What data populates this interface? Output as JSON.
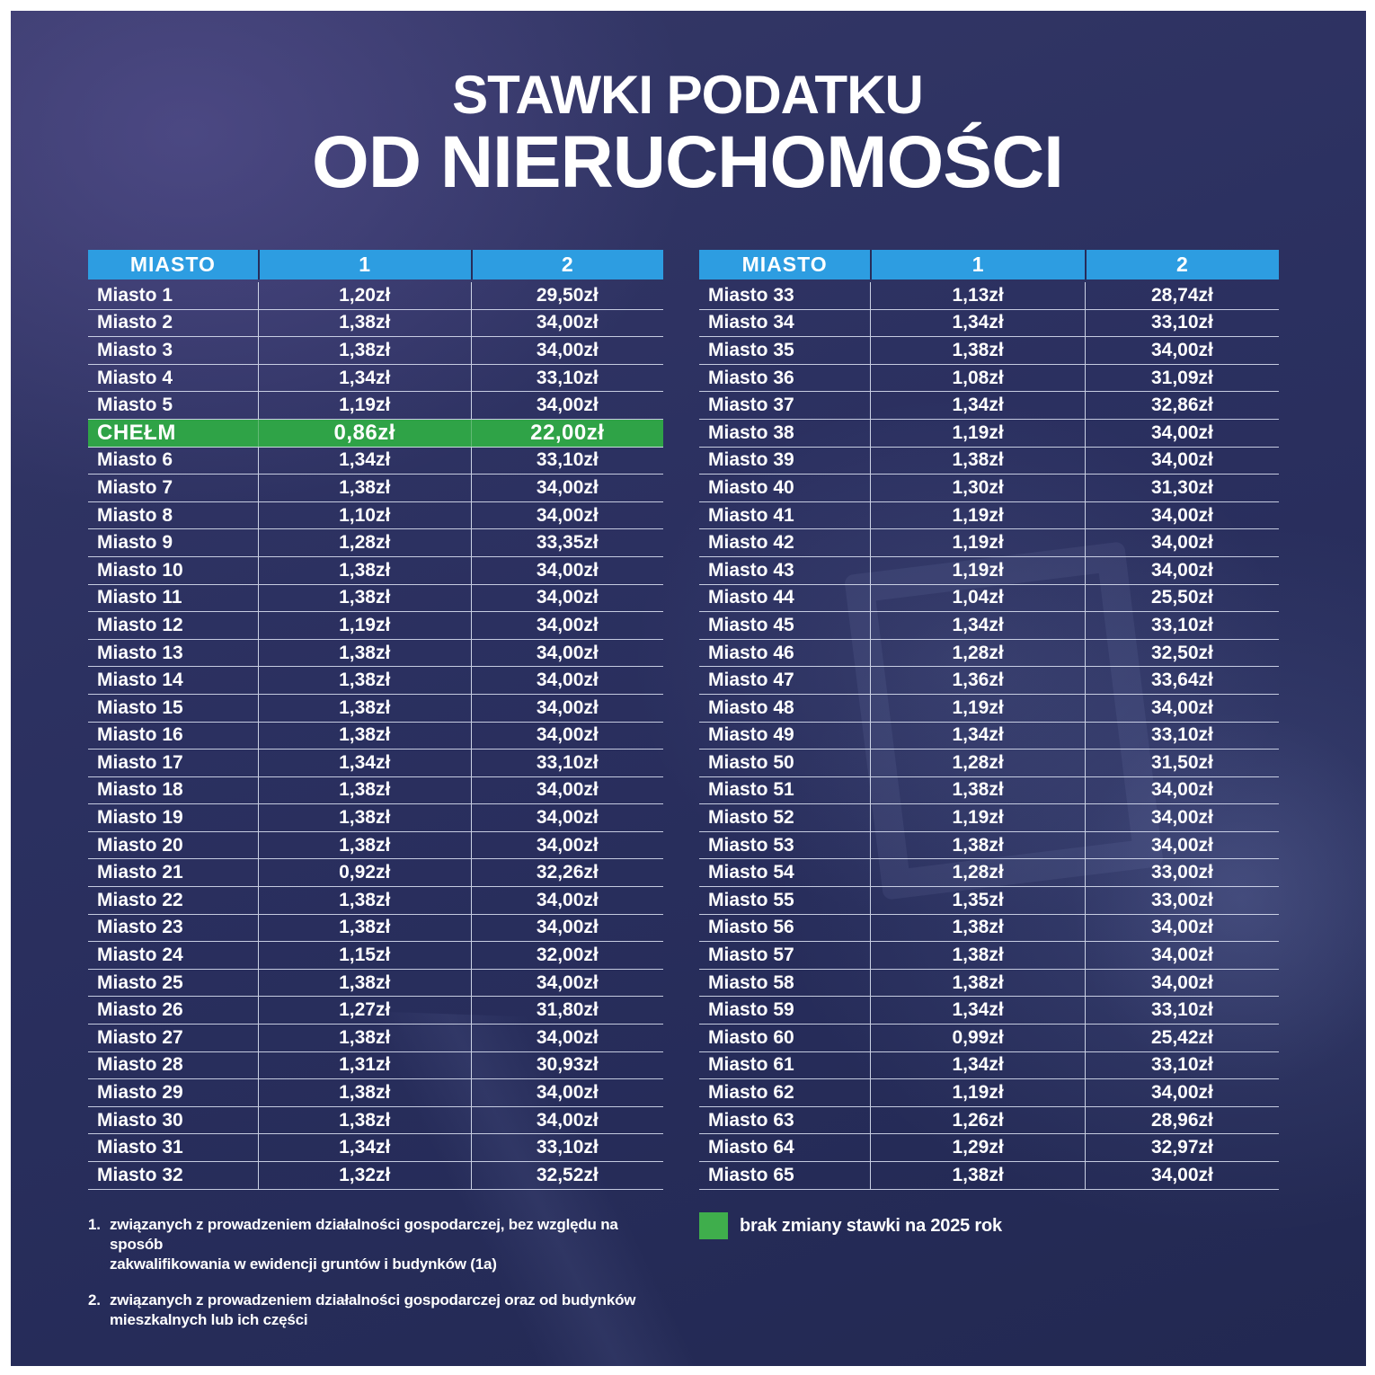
{
  "title": {
    "line1": "STAWKI PODATKU",
    "line2": "OD NIERUCHOMOŚCI"
  },
  "colors": {
    "panel_navy": "#2b3060",
    "frame_white": "#ffffff",
    "header_blue": "#2d9de1",
    "highlight_green": "#2fa347",
    "legend_green": "#3fae4c",
    "text_white": "#ffffff"
  },
  "chart_data": {
    "type": "table",
    "title": "STAWKI PODATKU OD NIERUCHOMOŚCI",
    "columns": [
      "MIASTO",
      "1",
      "2"
    ],
    "highlighted_row": "CHEŁM",
    "highlight_meaning": "brak zmiany stawki na 2025 rok",
    "tables": [
      {
        "position": "left",
        "rows": [
          [
            "Miasto 1",
            "1,20zł",
            "29,50zł"
          ],
          [
            "Miasto 2",
            "1,38zł",
            "34,00zł"
          ],
          [
            "Miasto 3",
            "1,38zł",
            "34,00zł"
          ],
          [
            "Miasto 4",
            "1,34zł",
            "33,10zł"
          ],
          [
            "Miasto 5",
            "1,19zł",
            "34,00zł"
          ],
          [
            "CHEŁM",
            "0,86zł",
            "22,00zł"
          ],
          [
            "Miasto 6",
            "1,34zł",
            "33,10zł"
          ],
          [
            "Miasto 7",
            "1,38zł",
            "34,00zł"
          ],
          [
            "Miasto 8",
            "1,10zł",
            "34,00zł"
          ],
          [
            "Miasto 9",
            "1,28zł",
            "33,35zł"
          ],
          [
            "Miasto 10",
            "1,38zł",
            "34,00zł"
          ],
          [
            "Miasto 11",
            "1,38zł",
            "34,00zł"
          ],
          [
            "Miasto 12",
            "1,19zł",
            "34,00zł"
          ],
          [
            "Miasto 13",
            "1,38zł",
            "34,00zł"
          ],
          [
            "Miasto 14",
            "1,38zł",
            "34,00zł"
          ],
          [
            "Miasto 15",
            "1,38zł",
            "34,00zł"
          ],
          [
            "Miasto 16",
            "1,38zł",
            "34,00zł"
          ],
          [
            "Miasto 17",
            "1,34zł",
            "33,10zł"
          ],
          [
            "Miasto 18",
            "1,38zł",
            "34,00zł"
          ],
          [
            "Miasto 19",
            "1,38zł",
            "34,00zł"
          ],
          [
            "Miasto 20",
            "1,38zł",
            "34,00zł"
          ],
          [
            "Miasto 21",
            "0,92zł",
            "32,26zł"
          ],
          [
            "Miasto 22",
            "1,38zł",
            "34,00zł"
          ],
          [
            "Miasto 23",
            "1,38zł",
            "34,00zł"
          ],
          [
            "Miasto 24",
            "1,15zł",
            "32,00zł"
          ],
          [
            "Miasto 25",
            "1,38zł",
            "34,00zł"
          ],
          [
            "Miasto 26",
            "1,27zł",
            "31,80zł"
          ],
          [
            "Miasto 27",
            "1,38zł",
            "34,00zł"
          ],
          [
            "Miasto 28",
            "1,31zł",
            "30,93zł"
          ],
          [
            "Miasto 29",
            "1,38zł",
            "34,00zł"
          ],
          [
            "Miasto 30",
            "1,38zł",
            "34,00zł"
          ],
          [
            "Miasto 31",
            "1,34zł",
            "33,10zł"
          ],
          [
            "Miasto 32",
            "1,32zł",
            "32,52zł"
          ]
        ]
      },
      {
        "position": "right",
        "rows": [
          [
            "Miasto 33",
            "1,13zł",
            "28,74zł"
          ],
          [
            "Miasto 34",
            "1,34zł",
            "33,10zł"
          ],
          [
            "Miasto 35",
            "1,38zł",
            "34,00zł"
          ],
          [
            "Miasto 36",
            "1,08zł",
            "31,09zł"
          ],
          [
            "Miasto 37",
            "1,34zł",
            "32,86zł"
          ],
          [
            "Miasto 38",
            "1,19zł",
            "34,00zł"
          ],
          [
            "Miasto 39",
            "1,38zł",
            "34,00zł"
          ],
          [
            "Miasto 40",
            "1,30zł",
            "31,30zł"
          ],
          [
            "Miasto 41",
            "1,19zł",
            "34,00zł"
          ],
          [
            "Miasto 42",
            "1,19zł",
            "34,00zł"
          ],
          [
            "Miasto 43",
            "1,19zł",
            "34,00zł"
          ],
          [
            "Miasto 44",
            "1,04zł",
            "25,50zł"
          ],
          [
            "Miasto 45",
            "1,34zł",
            "33,10zł"
          ],
          [
            "Miasto 46",
            "1,28zł",
            "32,50zł"
          ],
          [
            "Miasto 47",
            "1,36zł",
            "33,64zł"
          ],
          [
            "Miasto 48",
            "1,19zł",
            "34,00zł"
          ],
          [
            "Miasto 49",
            "1,34zł",
            "33,10zł"
          ],
          [
            "Miasto 50",
            "1,28zł",
            "31,50zł"
          ],
          [
            "Miasto 51",
            "1,38zł",
            "34,00zł"
          ],
          [
            "Miasto 52",
            "1,19zł",
            "34,00zł"
          ],
          [
            "Miasto 53",
            "1,38zł",
            "34,00zł"
          ],
          [
            "Miasto 54",
            "1,28zł",
            "33,00zł"
          ],
          [
            "Miasto 55",
            "1,35zł",
            "33,00zł"
          ],
          [
            "Miasto 56",
            "1,38zł",
            "34,00zł"
          ],
          [
            "Miasto 57",
            "1,38zł",
            "34,00zł"
          ],
          [
            "Miasto 58",
            "1,38zł",
            "34,00zł"
          ],
          [
            "Miasto 59",
            "1,34zł",
            "33,10zł"
          ],
          [
            "Miasto 60",
            "0,99zł",
            "25,42zł"
          ],
          [
            "Miasto 61",
            "1,34zł",
            "33,10zł"
          ],
          [
            "Miasto 62",
            "1,19zł",
            "34,00zł"
          ],
          [
            "Miasto 63",
            "1,26zł",
            "28,96zł"
          ],
          [
            "Miasto 64",
            "1,29zł",
            "32,97zł"
          ],
          [
            "Miasto 65",
            "1,38zł",
            "34,00zł"
          ]
        ]
      }
    ]
  },
  "footnotes": [
    {
      "marker": "1.",
      "text": "związanych z prowadzeniem działalności gospodarczej, bez względu na sposób\nzakwalifikowania w ewidencji gruntów i budynków  (1a)"
    },
    {
      "marker": "2.",
      "text": "związanych z prowadzeniem działalności gospodarczej oraz od budynków\nmieszkalnych lub ich części"
    }
  ],
  "legend": {
    "label": "brak zmiany stawki na 2025 rok"
  }
}
